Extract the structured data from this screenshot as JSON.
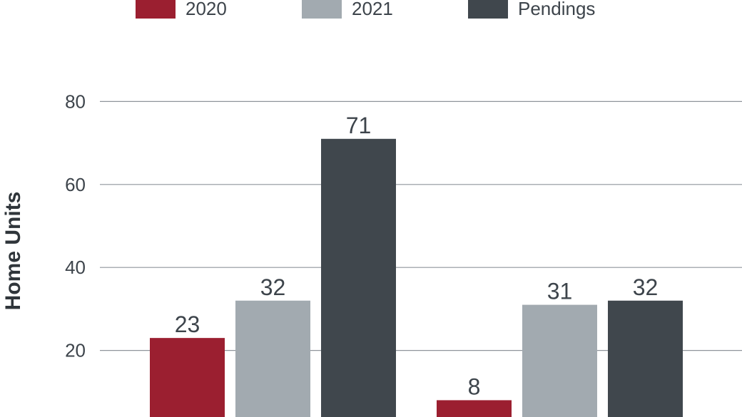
{
  "chart_data": {
    "type": "bar",
    "title": "",
    "xlabel": "",
    "ylabel": "Home Units",
    "ylim": [
      0,
      80
    ],
    "yticks": [
      20,
      40,
      60,
      80
    ],
    "grid": true,
    "legend_position": "top",
    "categories": [
      "",
      ""
    ],
    "series": [
      {
        "name": "2020",
        "color": "#9b1f30",
        "values": [
          23,
          8
        ]
      },
      {
        "name": "2021",
        "color": "#a2aab0",
        "values": [
          32,
          31
        ]
      },
      {
        "name": "Pendings",
        "color": "#40474d",
        "values": [
          71,
          32
        ]
      }
    ]
  }
}
